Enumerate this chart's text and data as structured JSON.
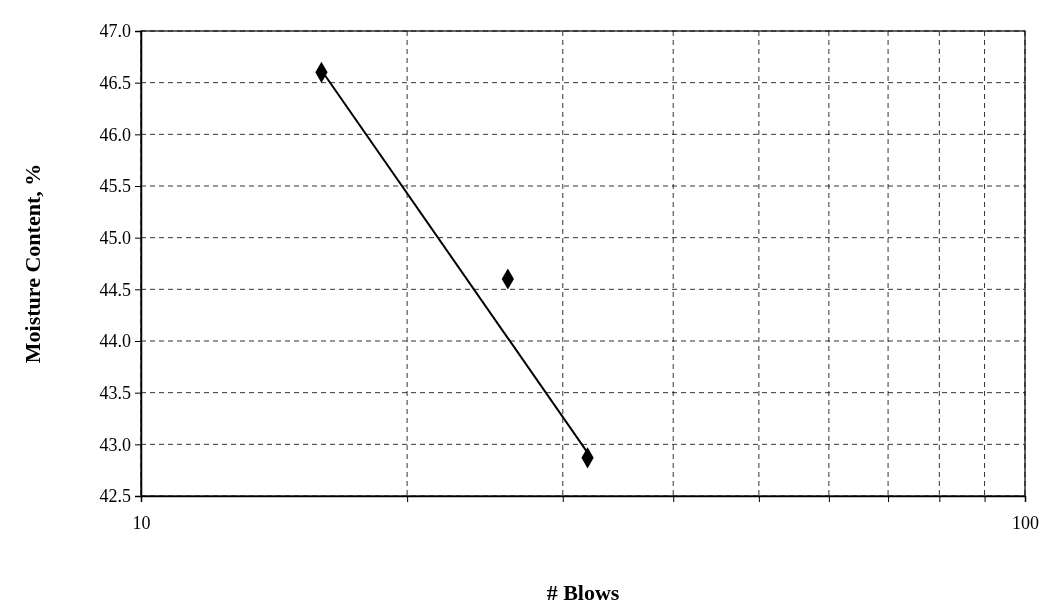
{
  "chart_data": {
    "type": "scatter",
    "xlabel": "# Blows",
    "ylabel": "Moisture Content, %",
    "log": "x",
    "grid": true,
    "xlim": [
      10,
      100
    ],
    "xticks": [
      10,
      {
        "value": 20,
        "label": null
      },
      {
        "value": 30,
        "label": null
      },
      {
        "value": 40,
        "label": null
      },
      {
        "value": 50,
        "label": null
      },
      {
        "value": 60,
        "label": null
      },
      {
        "value": 70,
        "label": null
      },
      {
        "value": 80,
        "label": null
      },
      {
        "value": 90,
        "label": null
      },
      100
    ],
    "ylim": [
      42.5,
      47.0
    ],
    "yticks": [
      {
        "value": 42.5,
        "label": "42.5"
      },
      {
        "value": 43,
        "label": "43.0"
      },
      {
        "value": 43.5,
        "label": "43.5"
      },
      {
        "value": 44,
        "label": "44.0"
      },
      {
        "value": 44.5,
        "label": "44.5"
      },
      {
        "value": 45,
        "label": "45.0"
      },
      {
        "value": 45.5,
        "label": "45.5"
      },
      {
        "value": 46,
        "label": "46.0"
      },
      {
        "value": 46.5,
        "label": "46.5"
      },
      {
        "value": 47,
        "label": "47.0"
      }
    ],
    "series": [
      {
        "type": "scatter",
        "marker": "diamond",
        "color": "#000000",
        "x": [
          16,
          26,
          32
        ],
        "values": [
          46.6,
          44.6,
          42.87
        ]
      },
      {
        "type": "line",
        "marker": "none",
        "line_style": "solid",
        "color": "#000000",
        "x": [
          16,
          32
        ],
        "values": [
          46.62,
          42.92
        ]
      }
    ]
  }
}
